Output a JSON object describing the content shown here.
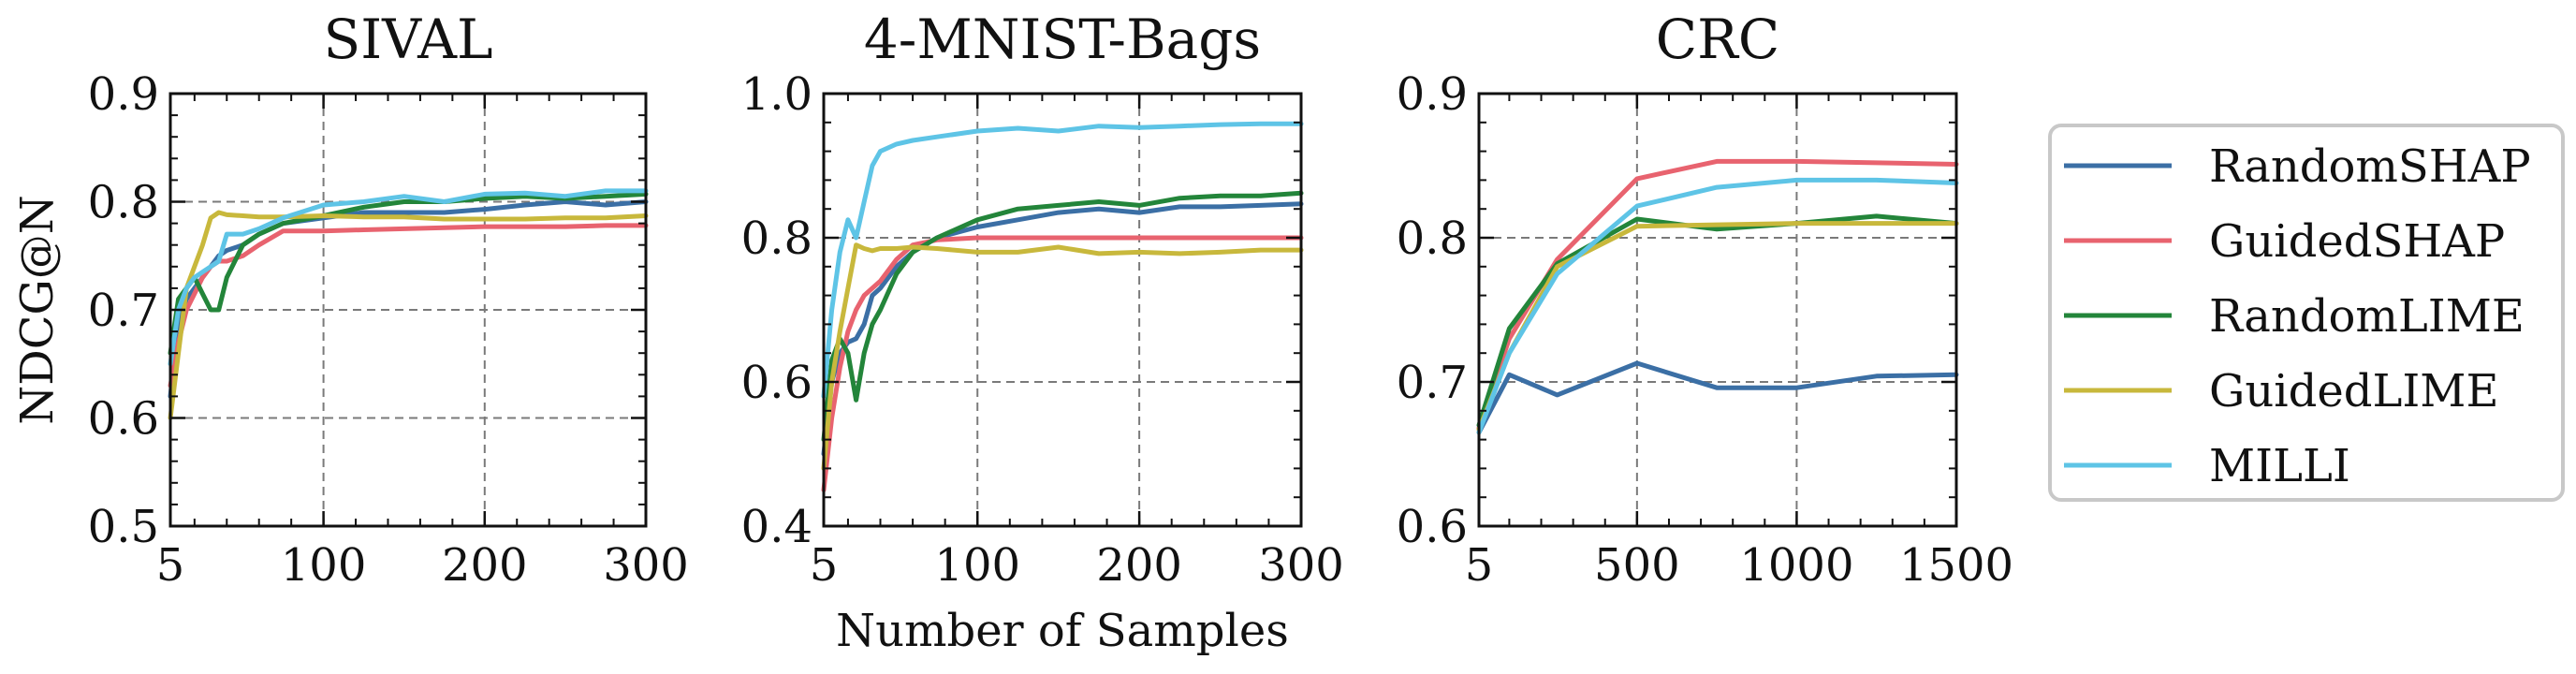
{
  "chart_data": [
    {
      "type": "line",
      "title": "SIVAL",
      "ylabel": "NDCG@N",
      "xlabel": "",
      "xlim": [
        5,
        300
      ],
      "ylim": [
        0.5,
        0.9
      ],
      "xticks": [
        5,
        100,
        200,
        300
      ],
      "yticks": [
        0.5,
        0.6,
        0.7,
        0.8,
        0.9
      ],
      "xtick_labels": [
        "5",
        "100",
        "200",
        "300"
      ],
      "ytick_labels": [
        "0.5",
        "0.6",
        "0.7",
        "0.8",
        "0.9"
      ],
      "grid": true,
      "series": [
        {
          "name": "RandomSHAP",
          "x": [
            5,
            10,
            15,
            20,
            25,
            30,
            35,
            40,
            50,
            60,
            75,
            100,
            125,
            150,
            175,
            200,
            225,
            250,
            275,
            300
          ],
          "y": [
            0.62,
            0.69,
            0.71,
            0.72,
            0.73,
            0.74,
            0.75,
            0.755,
            0.76,
            0.77,
            0.78,
            0.785,
            0.79,
            0.79,
            0.79,
            0.793,
            0.797,
            0.8,
            0.797,
            0.8
          ]
        },
        {
          "name": "GuidedSHAP",
          "x": [
            5,
            10,
            15,
            20,
            25,
            30,
            35,
            40,
            50,
            60,
            75,
            100,
            125,
            150,
            175,
            200,
            225,
            250,
            275,
            300
          ],
          "y": [
            0.63,
            0.67,
            0.7,
            0.715,
            0.73,
            0.74,
            0.745,
            0.745,
            0.75,
            0.76,
            0.773,
            0.773,
            0.774,
            0.775,
            0.776,
            0.777,
            0.777,
            0.777,
            0.778,
            0.778
          ]
        },
        {
          "name": "RandomLIME",
          "x": [
            5,
            10,
            15,
            20,
            25,
            30,
            35,
            40,
            50,
            60,
            75,
            100,
            125,
            150,
            175,
            200,
            225,
            250,
            275,
            300
          ],
          "y": [
            0.66,
            0.71,
            0.72,
            0.73,
            0.715,
            0.7,
            0.7,
            0.73,
            0.76,
            0.77,
            0.78,
            0.787,
            0.795,
            0.8,
            0.8,
            0.803,
            0.805,
            0.803,
            0.805,
            0.807
          ]
        },
        {
          "name": "GuidedLIME",
          "x": [
            5,
            10,
            15,
            20,
            25,
            30,
            35,
            40,
            50,
            60,
            75,
            100,
            125,
            150,
            175,
            200,
            225,
            250,
            275,
            300
          ],
          "y": [
            0.6,
            0.66,
            0.72,
            0.74,
            0.76,
            0.785,
            0.79,
            0.788,
            0.787,
            0.786,
            0.786,
            0.787,
            0.786,
            0.786,
            0.784,
            0.784,
            0.784,
            0.785,
            0.785,
            0.787
          ]
        },
        {
          "name": "MILLI",
          "x": [
            5,
            10,
            15,
            20,
            25,
            30,
            35,
            40,
            50,
            60,
            75,
            100,
            125,
            150,
            175,
            200,
            225,
            250,
            275,
            300
          ],
          "y": [
            0.65,
            0.7,
            0.72,
            0.73,
            0.735,
            0.74,
            0.745,
            0.77,
            0.77,
            0.775,
            0.785,
            0.797,
            0.8,
            0.805,
            0.8,
            0.807,
            0.808,
            0.805,
            0.81,
            0.81
          ]
        }
      ]
    },
    {
      "type": "line",
      "title": "4-MNIST-Bags",
      "ylabel": "",
      "xlabel": "Number of Samples",
      "xlim": [
        5,
        300
      ],
      "ylim": [
        0.4,
        1.0
      ],
      "xticks": [
        5,
        100,
        200,
        300
      ],
      "yticks": [
        0.4,
        0.6,
        0.8,
        1.0
      ],
      "xtick_labels": [
        "5",
        "100",
        "200",
        "300"
      ],
      "ytick_labels": [
        "0.4",
        "0.6",
        "0.8",
        "1.0"
      ],
      "grid": true,
      "series": [
        {
          "name": "RandomSHAP",
          "x": [
            5,
            10,
            15,
            20,
            25,
            30,
            35,
            40,
            50,
            60,
            75,
            100,
            125,
            150,
            175,
            200,
            225,
            250,
            275,
            300
          ],
          "y": [
            0.5,
            0.6,
            0.64,
            0.655,
            0.66,
            0.68,
            0.72,
            0.73,
            0.76,
            0.78,
            0.8,
            0.815,
            0.825,
            0.835,
            0.84,
            0.835,
            0.843,
            0.843,
            0.845,
            0.847
          ]
        },
        {
          "name": "GuidedSHAP",
          "x": [
            5,
            10,
            15,
            20,
            25,
            30,
            35,
            40,
            50,
            60,
            75,
            100,
            125,
            150,
            175,
            200,
            225,
            250,
            275,
            300
          ],
          "y": [
            0.45,
            0.55,
            0.62,
            0.67,
            0.7,
            0.72,
            0.73,
            0.74,
            0.77,
            0.79,
            0.797,
            0.8,
            0.8,
            0.8,
            0.8,
            0.8,
            0.8,
            0.8,
            0.8,
            0.8
          ]
        },
        {
          "name": "RandomLIME",
          "x": [
            5,
            10,
            15,
            20,
            25,
            30,
            35,
            40,
            50,
            60,
            75,
            100,
            125,
            150,
            175,
            200,
            225,
            250,
            275,
            300
          ],
          "y": [
            0.52,
            0.63,
            0.66,
            0.64,
            0.575,
            0.64,
            0.68,
            0.7,
            0.75,
            0.78,
            0.8,
            0.825,
            0.84,
            0.845,
            0.85,
            0.845,
            0.855,
            0.858,
            0.858,
            0.862
          ]
        },
        {
          "name": "GuidedLIME",
          "x": [
            5,
            10,
            15,
            20,
            25,
            30,
            35,
            40,
            50,
            60,
            75,
            100,
            125,
            150,
            175,
            200,
            225,
            250,
            275,
            300
          ],
          "y": [
            0.48,
            0.6,
            0.67,
            0.73,
            0.79,
            0.785,
            0.782,
            0.785,
            0.785,
            0.787,
            0.785,
            0.78,
            0.78,
            0.787,
            0.778,
            0.78,
            0.778,
            0.78,
            0.783,
            0.783
          ]
        },
        {
          "name": "MILLI",
          "x": [
            5,
            10,
            15,
            20,
            25,
            30,
            35,
            40,
            50,
            60,
            75,
            100,
            125,
            150,
            175,
            200,
            225,
            250,
            275,
            300
          ],
          "y": [
            0.58,
            0.7,
            0.78,
            0.825,
            0.8,
            0.85,
            0.9,
            0.92,
            0.93,
            0.935,
            0.94,
            0.948,
            0.952,
            0.948,
            0.955,
            0.953,
            0.955,
            0.957,
            0.958,
            0.958
          ]
        }
      ]
    },
    {
      "type": "line",
      "title": "CRC",
      "ylabel": "",
      "xlabel": "",
      "xlim": [
        5,
        1500
      ],
      "ylim": [
        0.6,
        0.9
      ],
      "xticks": [
        5,
        500,
        1000,
        1500
      ],
      "yticks": [
        0.6,
        0.7,
        0.8,
        0.9
      ],
      "xtick_labels": [
        "5",
        "500",
        "1000",
        "1500"
      ],
      "ytick_labels": [
        "0.6",
        "0.7",
        "0.8",
        "0.9"
      ],
      "grid": true,
      "series": [
        {
          "name": "RandomSHAP",
          "x": [
            5,
            100,
            250,
            500,
            750,
            1000,
            1250,
            1500
          ],
          "y": [
            0.665,
            0.705,
            0.691,
            0.713,
            0.696,
            0.696,
            0.704,
            0.705
          ]
        },
        {
          "name": "GuidedSHAP",
          "x": [
            5,
            100,
            250,
            500,
            750,
            1000,
            1250,
            1500
          ],
          "y": [
            0.668,
            0.73,
            0.785,
            0.841,
            0.853,
            0.853,
            0.852,
            0.851
          ]
        },
        {
          "name": "RandomLIME",
          "x": [
            5,
            100,
            250,
            500,
            750,
            1000,
            1250,
            1500
          ],
          "y": [
            0.67,
            0.737,
            0.782,
            0.813,
            0.806,
            0.81,
            0.815,
            0.81
          ]
        },
        {
          "name": "GuidedLIME",
          "x": [
            5,
            100,
            250,
            500,
            750,
            1000,
            1250,
            1500
          ],
          "y": [
            0.667,
            0.72,
            0.78,
            0.808,
            0.809,
            0.81,
            0.81,
            0.81
          ]
        },
        {
          "name": "MILLI",
          "x": [
            5,
            100,
            250,
            500,
            750,
            1000,
            1250,
            1500
          ],
          "y": [
            0.665,
            0.72,
            0.775,
            0.822,
            0.835,
            0.84,
            0.84,
            0.838
          ]
        }
      ]
    }
  ],
  "legend": {
    "placement": "right",
    "entries": [
      {
        "label": "RandomSHAP",
        "color": "#3b6fa5"
      },
      {
        "label": "GuidedSHAP",
        "color": "#e8636f"
      },
      {
        "label": "RandomLIME",
        "color": "#23853a"
      },
      {
        "label": "GuidedLIME",
        "color": "#c8b83c"
      },
      {
        "label": "MILLI",
        "color": "#5ec4e6"
      }
    ]
  }
}
